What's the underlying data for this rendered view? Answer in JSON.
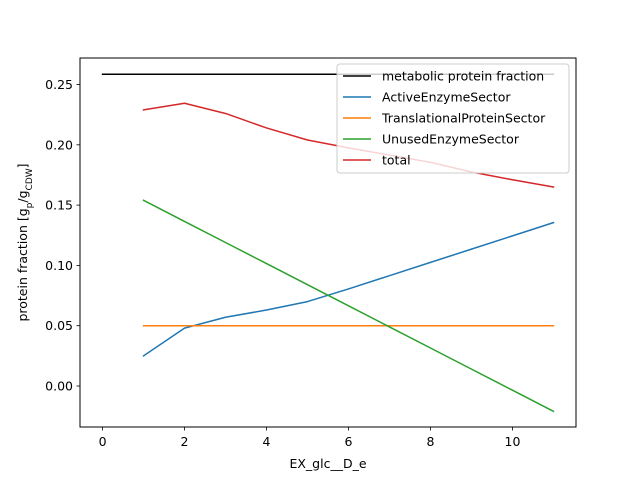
{
  "chart_data": {
    "type": "line",
    "title": "",
    "xlabel": "EX_glc__D_e",
    "ylabel": {
      "prefix": "protein fraction [g",
      "sub1": "p",
      "mid": "/g",
      "sub2": "CDW",
      "suffix": "]"
    },
    "xlim": [
      -0.55,
      11.55
    ],
    "ylim": [
      -0.034,
      0.272
    ],
    "x_ticks": [
      0,
      2,
      4,
      6,
      8,
      10
    ],
    "y_ticks": [
      0.0,
      0.05,
      0.1,
      0.15,
      0.2,
      0.25
    ],
    "y_tick_labels": [
      "0.00",
      "0.05",
      "0.10",
      "0.15",
      "0.20",
      "0.25"
    ],
    "grid": false,
    "legend_position": "top-right",
    "series": [
      {
        "name": "metabolic protein fraction",
        "color": "#000000",
        "x": [
          0,
          11
        ],
        "y": [
          0.2585,
          0.2585
        ]
      },
      {
        "name": "ActiveEnzymeSector",
        "color": "#1f77b4",
        "x": [
          1,
          2,
          3,
          4,
          5,
          6,
          7,
          8,
          9,
          10,
          11
        ],
        "y": [
          0.025,
          0.048,
          0.057,
          0.063,
          0.07,
          0.0805,
          0.0915,
          0.1025,
          0.1135,
          0.1245,
          0.1355
        ]
      },
      {
        "name": "TranslationalProteinSector",
        "color": "#ff7f0e",
        "x": [
          1,
          11
        ],
        "y": [
          0.05,
          0.05
        ]
      },
      {
        "name": "UnusedEnzymeSector",
        "color": "#2ca02c",
        "x": [
          1,
          2,
          3,
          4,
          5,
          6,
          7,
          8,
          9,
          10,
          11
        ],
        "y": [
          0.154,
          0.1365,
          0.119,
          0.1015,
          0.084,
          0.0665,
          0.049,
          0.0315,
          0.014,
          -0.0035,
          -0.021
        ]
      },
      {
        "name": "total",
        "color": "#d62728",
        "x": [
          1,
          2,
          3,
          4,
          5,
          6,
          7,
          8,
          9,
          10,
          11
        ],
        "y": [
          0.229,
          0.2345,
          0.226,
          0.214,
          0.204,
          0.1975,
          0.1915,
          0.1855,
          0.1775,
          0.171,
          0.165
        ]
      }
    ]
  }
}
